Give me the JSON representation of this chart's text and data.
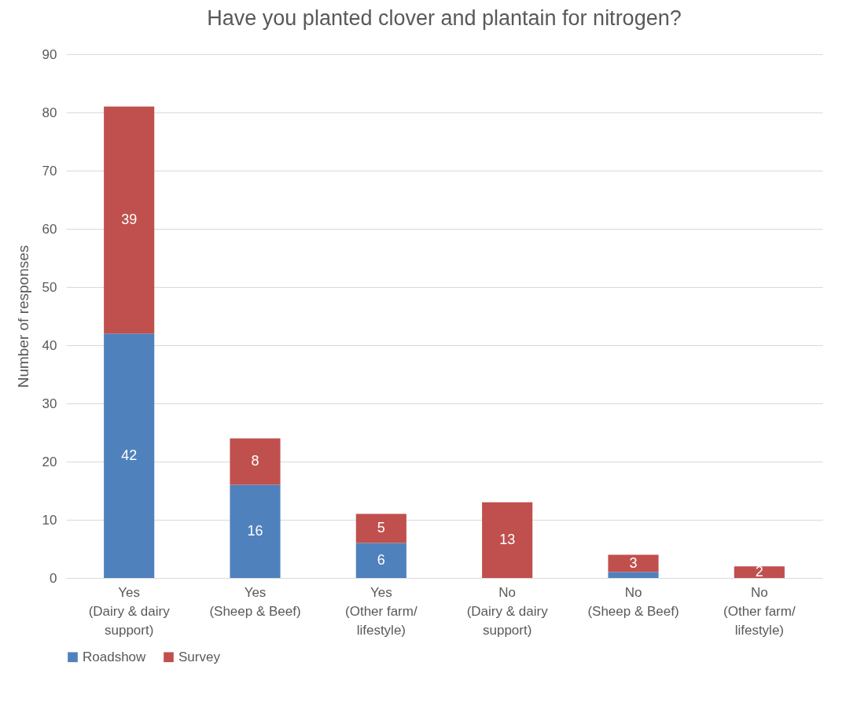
{
  "chart_data": {
    "type": "bar",
    "title": "Have you planted clover and plantain for nitrogen?",
    "ylabel": "Number of responses",
    "categories": [
      "Yes\n(Dairy & dairy\nsupport)",
      "Yes\n(Sheep & Beef)",
      "Yes\n(Other farm/\nlifestyle)",
      "No\n(Dairy & dairy\nsupport)",
      "No\n(Sheep & Beef)",
      "No\n(Other farm/\nlifestyle)"
    ],
    "series": [
      {
        "name": "Roadshow",
        "color": "#4f81bd",
        "values": [
          42,
          16,
          6,
          0,
          1,
          0
        ],
        "value_labels": [
          "42",
          "16",
          "6",
          null,
          null,
          null
        ]
      },
      {
        "name": "Survey",
        "color": "#c0504d",
        "values": [
          39,
          8,
          5,
          13,
          3,
          2
        ],
        "value_labels": [
          "39",
          "8",
          "5",
          "13",
          "3",
          "2"
        ]
      }
    ],
    "stacked": true,
    "ylim": [
      0,
      90
    ],
    "yticks": [
      0,
      10,
      20,
      30,
      40,
      50,
      60,
      70,
      80,
      90
    ],
    "grid": "y",
    "legend": "bottom"
  }
}
